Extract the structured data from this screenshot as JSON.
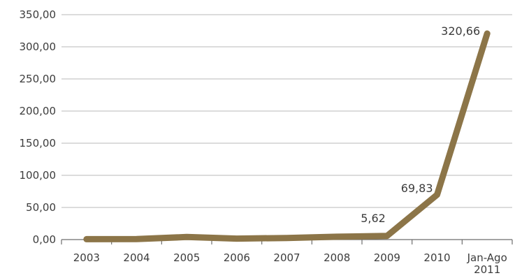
{
  "chart_data": {
    "type": "line",
    "categories": [
      "2003",
      "2004",
      "2005",
      "2006",
      "2007",
      "2008",
      "2009",
      "2010",
      "Jan-Ago\n2011"
    ],
    "series": [
      {
        "values": [
          0.6,
          0.8,
          4.0,
          1.5,
          2.5,
          4.5,
          5.62,
          69.83,
          320.66
        ]
      }
    ],
    "ylim": [
      0,
      350
    ],
    "yticks": [
      "0,00",
      "50,00",
      "100,00",
      "150,00",
      "200,00",
      "250,00",
      "300,00",
      "350,00"
    ],
    "data_labels": [
      {
        "index": 6,
        "text": "5,62"
      },
      {
        "index": 7,
        "text": "69,83"
      },
      {
        "index": 8,
        "text": "320,66"
      }
    ],
    "grid": true,
    "line_color": "#8c7548",
    "title": "",
    "xlabel": "",
    "ylabel": ""
  }
}
